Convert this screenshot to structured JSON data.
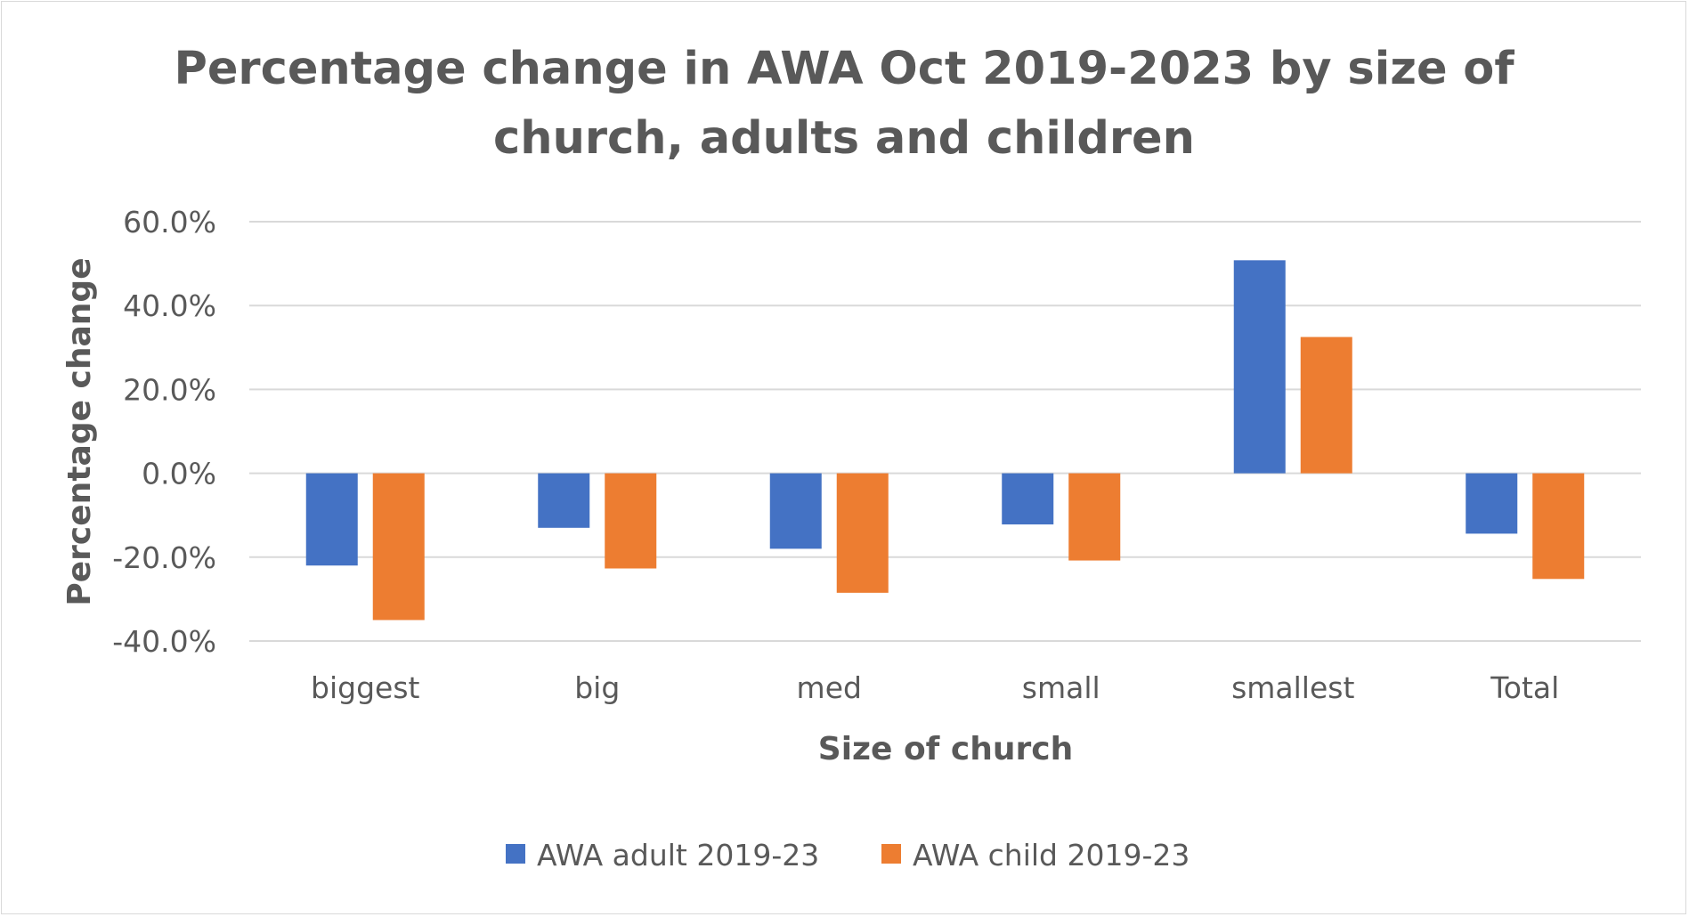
{
  "chart_data": {
    "type": "bar",
    "title_lines": [
      "Percentage change in AWA Oct 2019-2023 by size of",
      "church, adults and children"
    ],
    "xlabel": "Size of church",
    "ylabel": "Percentage change",
    "categories": [
      "biggest",
      "big",
      "med",
      "small",
      "smallest",
      "Total"
    ],
    "series": [
      {
        "name": "AWA adult 2019-23",
        "color": "#4472c4",
        "values": [
          -22.0,
          -13.0,
          -18.0,
          -12.2,
          50.8,
          -14.4
        ]
      },
      {
        "name": "AWA child 2019-23",
        "color": "#ed7d31",
        "values": [
          -35.0,
          -22.7,
          -28.5,
          -20.8,
          32.5,
          -25.2
        ]
      }
    ],
    "ylim": [
      -40,
      60
    ],
    "yticks": [
      {
        "value": 60,
        "label": "60.0%"
      },
      {
        "value": 40,
        "label": "40.0%"
      },
      {
        "value": 20,
        "label": "20.0%"
      },
      {
        "value": 0,
        "label": "0.0%"
      },
      {
        "value": -20,
        "label": "-20.0%"
      },
      {
        "value": -40,
        "label": "-40.0%"
      }
    ],
    "grid": true,
    "legend_position": "bottom"
  }
}
